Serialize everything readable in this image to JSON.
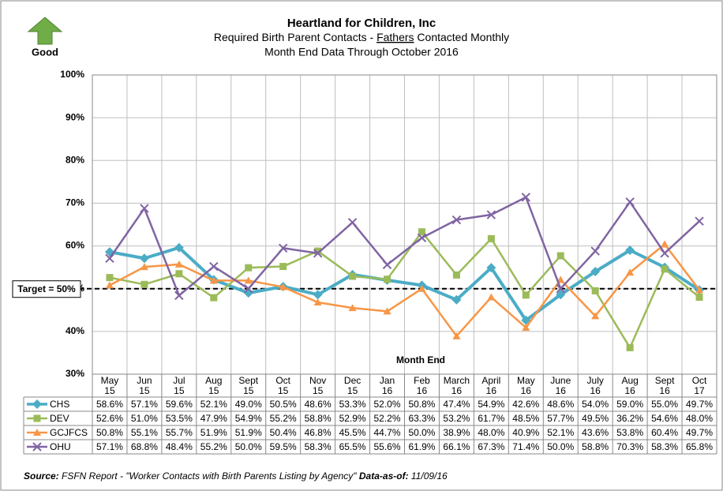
{
  "good_label": "Good",
  "chart_data": {
    "type": "line",
    "title": "Heartland for Children, Inc",
    "subtitle": [
      "Required Birth Parent Contacts - ",
      "Fathers",
      " Contacted Monthly"
    ],
    "subtitle2": "Month End Data Through October 2016",
    "x_label": "Month End",
    "target": 50,
    "target_label": "Target = 50%",
    "categories": [
      [
        "May",
        "15"
      ],
      [
        "Jun",
        "15"
      ],
      [
        "Jul",
        "15"
      ],
      [
        "Aug",
        "15"
      ],
      [
        "Sept",
        "15"
      ],
      [
        "Oct",
        "15"
      ],
      [
        "Nov",
        "15"
      ],
      [
        "Dec",
        "15"
      ],
      [
        "Jan",
        "16"
      ],
      [
        "Feb",
        "16"
      ],
      [
        "March",
        "16"
      ],
      [
        "April",
        "16"
      ],
      [
        "May",
        "16"
      ],
      [
        "June",
        "16"
      ],
      [
        "July",
        "16"
      ],
      [
        "Aug",
        "16"
      ],
      [
        "Sept",
        "16"
      ],
      [
        "Oct",
        "17"
      ]
    ],
    "ylim": [
      30,
      100
    ],
    "yticks": [
      {
        "value": 30,
        "label": "30%"
      },
      {
        "value": 40,
        "label": "40%"
      },
      {
        "value": 50,
        "label": "50%"
      },
      {
        "value": 60,
        "label": "60%"
      },
      {
        "value": 70,
        "label": "70%"
      },
      {
        "value": 80,
        "label": "80%"
      },
      {
        "value": 90,
        "label": "90%"
      },
      {
        "value": 100,
        "label": "100%"
      }
    ],
    "grid": true,
    "series": [
      {
        "name": "CHS",
        "color": "#4bacc6",
        "marker": "diamond",
        "values": [
          58.6,
          57.1,
          59.6,
          52.1,
          49.0,
          50.5,
          48.6,
          53.3,
          52.0,
          50.8,
          47.4,
          54.9,
          42.6,
          48.6,
          54.0,
          59.0,
          55.0,
          49.7
        ],
        "value_labels": [
          "58.6%",
          "57.1%",
          "59.6%",
          "52.1%",
          "49.0%",
          "50.5%",
          "48.6%",
          "53.3%",
          "52.0%",
          "50.8%",
          "47.4%",
          "54.9%",
          "42.6%",
          "48.6%",
          "54.0%",
          "59.0%",
          "55.0%",
          "49.7%"
        ]
      },
      {
        "name": "DEV",
        "color": "#9bbb59",
        "marker": "square",
        "values": [
          52.6,
          51.0,
          53.5,
          47.9,
          54.9,
          55.2,
          58.8,
          52.9,
          52.2,
          63.3,
          53.2,
          61.7,
          48.5,
          57.7,
          49.5,
          36.2,
          54.6,
          48.0
        ],
        "value_labels": [
          "52.6%",
          "51.0%",
          "53.5%",
          "47.9%",
          "54.9%",
          "55.2%",
          "58.8%",
          "52.9%",
          "52.2%",
          "63.3%",
          "53.2%",
          "61.7%",
          "48.5%",
          "57.7%",
          "49.5%",
          "36.2%",
          "54.6%",
          "48.0%"
        ]
      },
      {
        "name": "GCJFCS",
        "color": "#f79646",
        "marker": "triangle",
        "values": [
          50.8,
          55.1,
          55.7,
          51.9,
          51.9,
          50.4,
          46.8,
          45.5,
          44.7,
          50.0,
          38.9,
          48.0,
          40.9,
          52.1,
          43.6,
          53.8,
          60.4,
          49.7
        ],
        "value_labels": [
          "50.8%",
          "55.1%",
          "55.7%",
          "51.9%",
          "51.9%",
          "50.4%",
          "46.8%",
          "45.5%",
          "44.7%",
          "50.0%",
          "38.9%",
          "48.0%",
          "40.9%",
          "52.1%",
          "43.6%",
          "53.8%",
          "60.4%",
          "49.7%"
        ]
      },
      {
        "name": "OHU",
        "color": "#8064a2",
        "marker": "x",
        "values": [
          57.1,
          68.8,
          48.4,
          55.2,
          50.0,
          59.5,
          58.3,
          65.5,
          55.6,
          61.9,
          66.1,
          67.3,
          71.4,
          50.0,
          58.8,
          70.3,
          58.3,
          65.8
        ],
        "value_labels": [
          "57.1%",
          "68.8%",
          "48.4%",
          "55.2%",
          "50.0%",
          "59.5%",
          "58.3%",
          "65.5%",
          "55.6%",
          "61.9%",
          "66.1%",
          "67.3%",
          "71.4%",
          "50.0%",
          "58.8%",
          "70.3%",
          "58.3%",
          "65.8%"
        ]
      }
    ]
  },
  "source": {
    "label": "Source:",
    "text": " FSFN Report - \"Worker Contacts with Birth Parents Listing by Agency\" ",
    "date_label": "Data-as-of:",
    "date": " 11/09/16"
  }
}
